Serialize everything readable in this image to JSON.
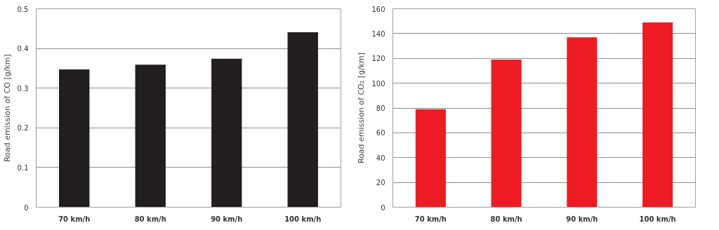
{
  "chart_data": [
    {
      "type": "bar",
      "ylabel": "Road emission of CO [g/km]",
      "categories": [
        "70 km/h",
        "80 km/h",
        "90 km/h",
        "100 km/h"
      ],
      "values": [
        0.347,
        0.359,
        0.374,
        0.441
      ],
      "color": "#231f20",
      "ylim": [
        0,
        0.5
      ],
      "yticks": [
        0,
        0.1,
        0.2,
        0.3,
        0.4,
        0.5
      ],
      "grid": "y"
    },
    {
      "type": "bar",
      "ylabel": "Road emission of CO₂ [g/km]",
      "categories": [
        "70 km/h",
        "80 km/h",
        "90 km/h",
        "100 km/h"
      ],
      "values": [
        79,
        119,
        137,
        149
      ],
      "color": "#ed1c24",
      "ylim": [
        0,
        160
      ],
      "yticks": [
        0,
        20,
        40,
        60,
        80,
        100,
        120,
        140,
        160
      ],
      "grid": "y"
    }
  ]
}
